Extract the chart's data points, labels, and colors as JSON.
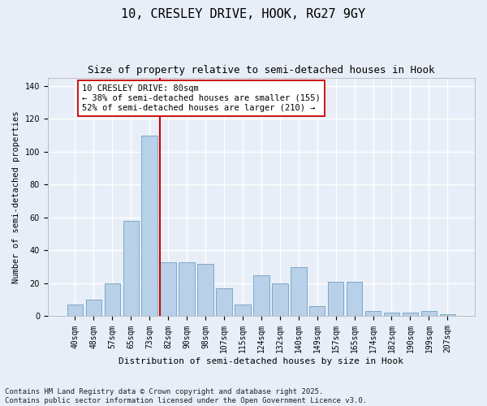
{
  "title": "10, CRESLEY DRIVE, HOOK, RG27 9GY",
  "subtitle": "Size of property relative to semi-detached houses in Hook",
  "xlabel": "Distribution of semi-detached houses by size in Hook",
  "ylabel": "Number of semi-detached properties",
  "bins": [
    "40sqm",
    "48sqm",
    "57sqm",
    "65sqm",
    "73sqm",
    "82sqm",
    "90sqm",
    "98sqm",
    "107sqm",
    "115sqm",
    "124sqm",
    "132sqm",
    "140sqm",
    "149sqm",
    "157sqm",
    "165sqm",
    "174sqm",
    "182sqm",
    "190sqm",
    "199sqm",
    "207sqm"
  ],
  "values": [
    7,
    10,
    20,
    58,
    110,
    33,
    33,
    32,
    17,
    7,
    25,
    20,
    30,
    6,
    21,
    21,
    3,
    2,
    2,
    3,
    1
  ],
  "bar_color": "#b8d0e8",
  "bar_edge_color": "#7aaac8",
  "vline_bin_index": 5,
  "vline_color": "#cc0000",
  "annotation_text": "10 CRESLEY DRIVE: 80sqm\n← 38% of semi-detached houses are smaller (155)\n52% of semi-detached houses are larger (210) →",
  "annotation_box_color": "#ffffff",
  "annotation_box_edge": "#cc0000",
  "footnote": "Contains HM Land Registry data © Crown copyright and database right 2025.\nContains public sector information licensed under the Open Government Licence v3.0.",
  "ylim": [
    0,
    145
  ],
  "bg_color": "#e8eef8",
  "plot_bg_color": "#e8eef8",
  "grid_color": "#ffffff",
  "title_fontsize": 11,
  "subtitle_fontsize": 9,
  "xlabel_fontsize": 8,
  "ylabel_fontsize": 7.5,
  "tick_fontsize": 7,
  "annotation_fontsize": 7.5,
  "footnote_fontsize": 6.5
}
